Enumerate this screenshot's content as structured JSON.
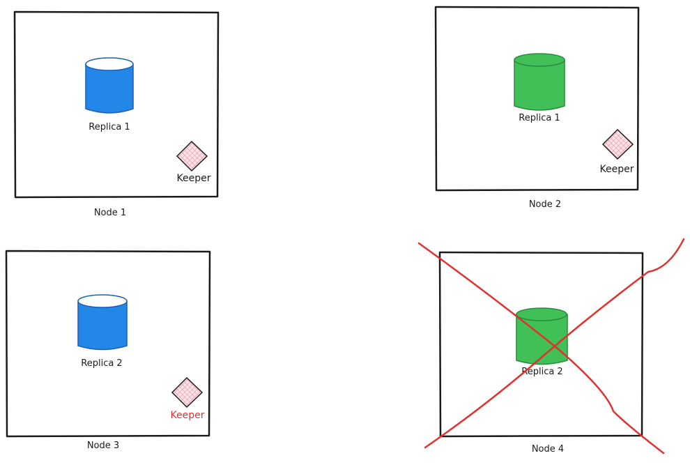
{
  "colors": {
    "blue": "#2387e8",
    "green": "#40c057",
    "stroke": "#1a1a1a",
    "red": "#e03131",
    "keeper_fill": "#f7b5c4"
  },
  "nodes": [
    {
      "label": "Node 1",
      "replica": "Replica 1",
      "replica_color": "blue",
      "keeper": "Keeper",
      "keeper_color": "stroke",
      "failed": false
    },
    {
      "label": "Node 2",
      "replica": "Replica 1",
      "replica_color": "green",
      "keeper": "Keeper",
      "keeper_color": "stroke",
      "failed": false
    },
    {
      "label": "Node 3",
      "replica": "Replica 2",
      "replica_color": "blue",
      "keeper": "Keeper",
      "keeper_color": "red",
      "failed": false
    },
    {
      "label": "Node 4",
      "replica": "Replica 2",
      "replica_color": "green",
      "keeper": "",
      "failed": true
    }
  ]
}
